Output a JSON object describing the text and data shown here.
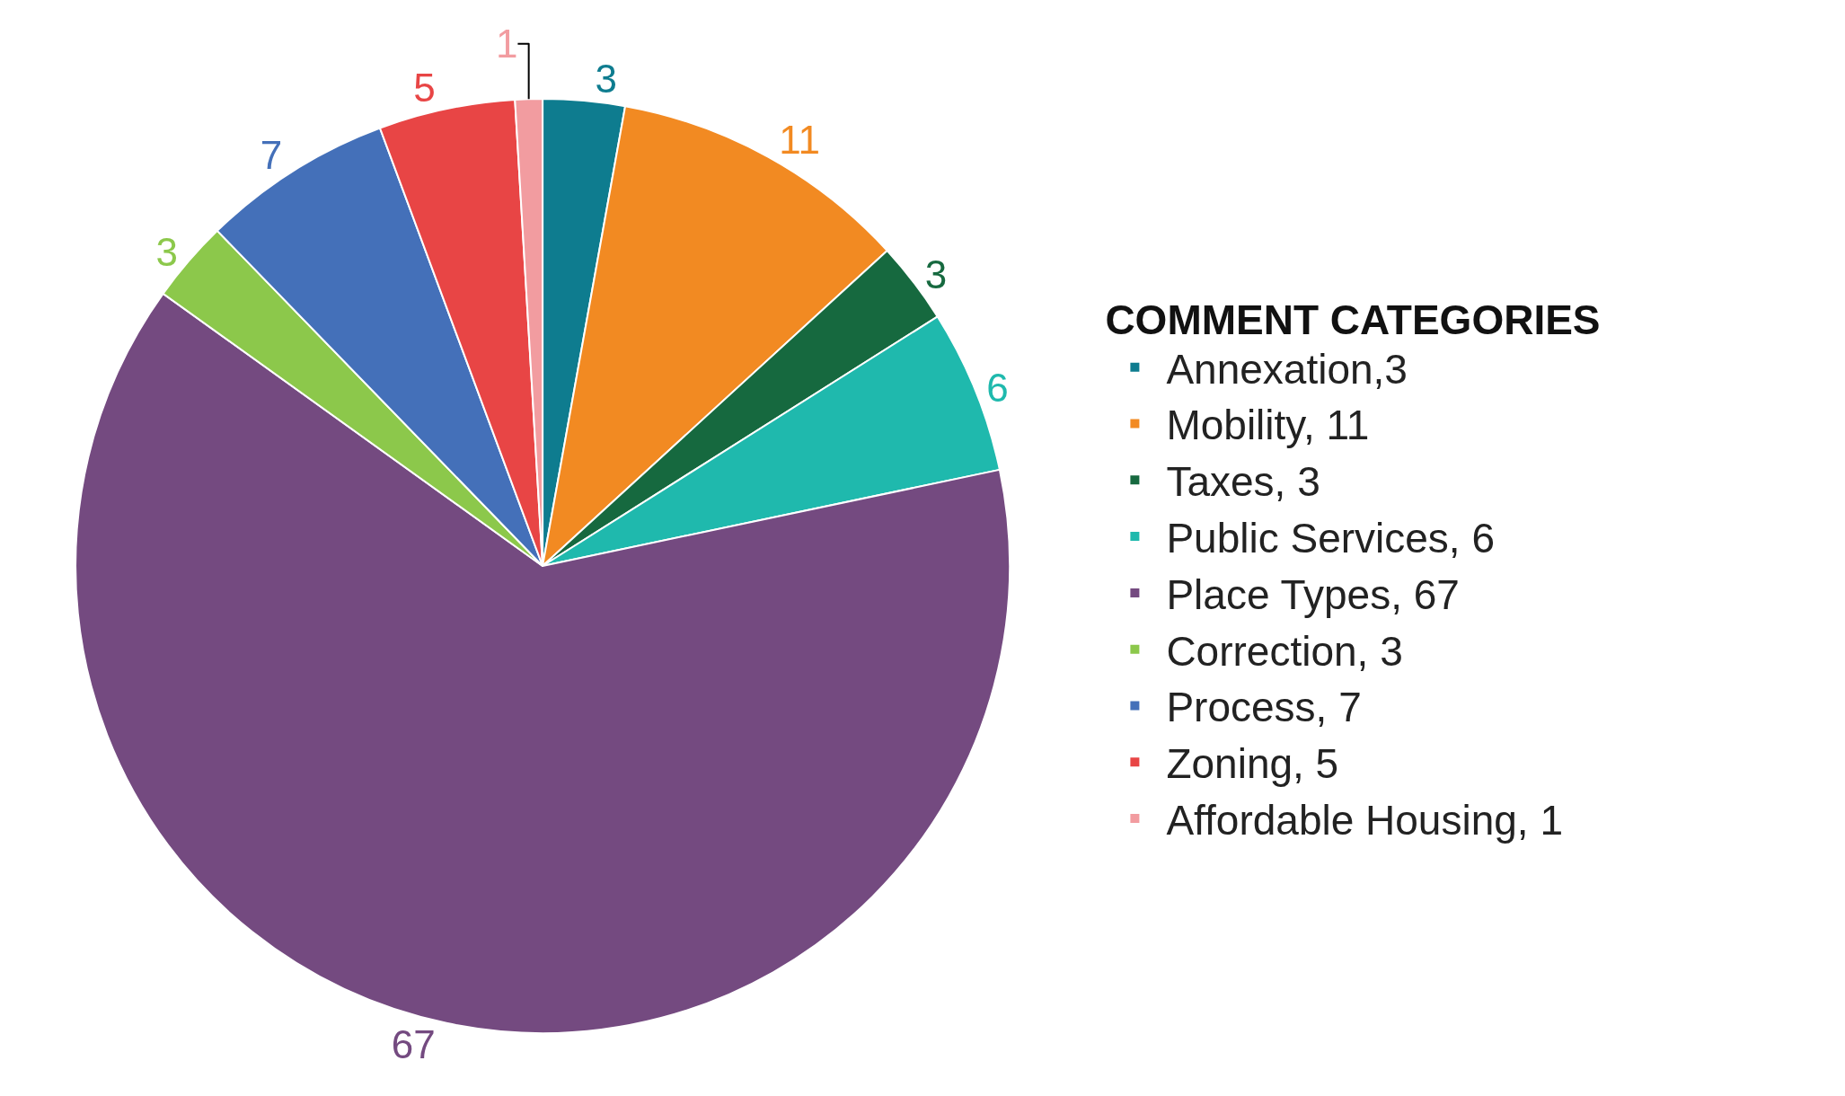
{
  "chart_data": {
    "type": "pie",
    "legend_title": "COMMENT CATEGORIES",
    "legend": "right",
    "categories": [
      "Annexation,3",
      "Mobility, 11",
      "Taxes, 3",
      "Public Services, 6",
      "Place Types, 67",
      "Correction, 3",
      "Process, 7",
      "Zoning, 5",
      "Affordable Housing, 1"
    ],
    "values": [
      3,
      11,
      3,
      6,
      67,
      3,
      7,
      5,
      1
    ],
    "colors": [
      "#0e7c8f",
      "#f28a22",
      "#16693f",
      "#1fb9ad",
      "#744a80",
      "#8cc84b",
      "#4470b9",
      "#e84545",
      "#f29ca0"
    ],
    "data_labels": true
  }
}
